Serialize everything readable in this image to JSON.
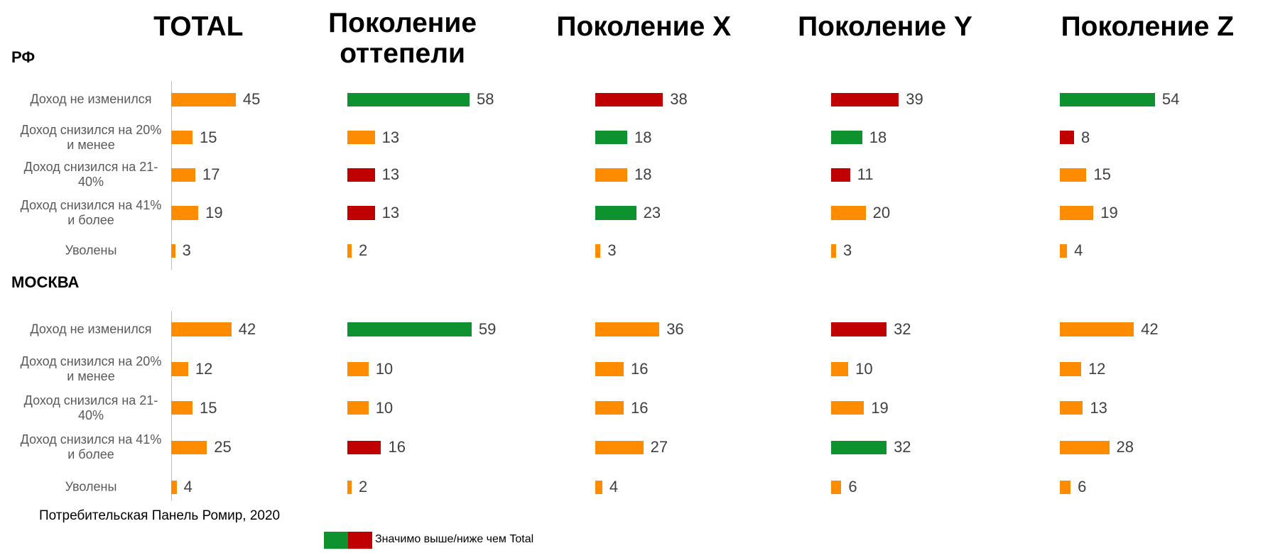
{
  "column_titles": [
    "TOTAL",
    "Поколение\nоттепели",
    "Поколение X",
    "Поколение Y",
    "Поколение Z"
  ],
  "row_titles": [
    "РФ",
    "МОСКВА"
  ],
  "categories": [
    "Доход не изменился",
    "Доход снизился на 20% и менее",
    "Доход снизился на 21-40%",
    "Доход снизился на 41% и более",
    "Уволены"
  ],
  "source": "Потребительская Панель Ромир, 2020",
  "legend": {
    "label": "Значимо выше/ниже чем Total",
    "colors": [
      "#0e922f",
      "#c00000"
    ]
  },
  "chart_data": [
    {
      "type": "bar",
      "values": [
        45,
        15,
        17,
        19,
        3
      ],
      "colors": [
        "#ff8c00",
        "#ff8c00",
        "#ff8c00",
        "#ff8c00",
        "#ff8c00"
      ]
    },
    {
      "type": "bar",
      "values": [
        58,
        13,
        13,
        13,
        2
      ],
      "colors": [
        "#0e922f",
        "#ff8c00",
        "#c00000",
        "#c00000",
        "#ff8c00"
      ]
    },
    {
      "type": "bar",
      "values": [
        38,
        18,
        18,
        23,
        3
      ],
      "colors": [
        "#c00000",
        "#0e922f",
        "#ff8c00",
        "#0e922f",
        "#ff8c00"
      ]
    },
    {
      "type": "bar",
      "values": [
        39,
        18,
        11,
        20,
        3
      ],
      "colors": [
        "#c00000",
        "#0e922f",
        "#c00000",
        "#ff8c00",
        "#ff8c00"
      ]
    },
    {
      "type": "bar",
      "values": [
        54,
        8,
        15,
        19,
        4
      ],
      "colors": [
        "#0e922f",
        "#c00000",
        "#ff8c00",
        "#ff8c00",
        "#ff8c00"
      ]
    },
    {
      "type": "bar",
      "values": [
        42,
        12,
        15,
        25,
        4
      ],
      "colors": [
        "#ff8c00",
        "#ff8c00",
        "#ff8c00",
        "#ff8c00",
        "#ff8c00"
      ]
    },
    {
      "type": "bar",
      "values": [
        59,
        10,
        10,
        16,
        2
      ],
      "colors": [
        "#0e922f",
        "#ff8c00",
        "#ff8c00",
        "#c00000",
        "#ff8c00"
      ]
    },
    {
      "type": "bar",
      "values": [
        36,
        16,
        16,
        27,
        4
      ],
      "colors": [
        "#ff8c00",
        "#ff8c00",
        "#ff8c00",
        "#ff8c00",
        "#ff8c00"
      ]
    },
    {
      "type": "bar",
      "values": [
        32,
        10,
        19,
        32,
        6
      ],
      "colors": [
        "#c00000",
        "#ff8c00",
        "#ff8c00",
        "#0e922f",
        "#ff8c00"
      ]
    },
    {
      "type": "bar",
      "values": [
        42,
        12,
        13,
        28,
        6
      ],
      "colors": [
        "#ff8c00",
        "#ff8c00",
        "#ff8c00",
        "#ff8c00",
        "#ff8c00"
      ]
    }
  ]
}
